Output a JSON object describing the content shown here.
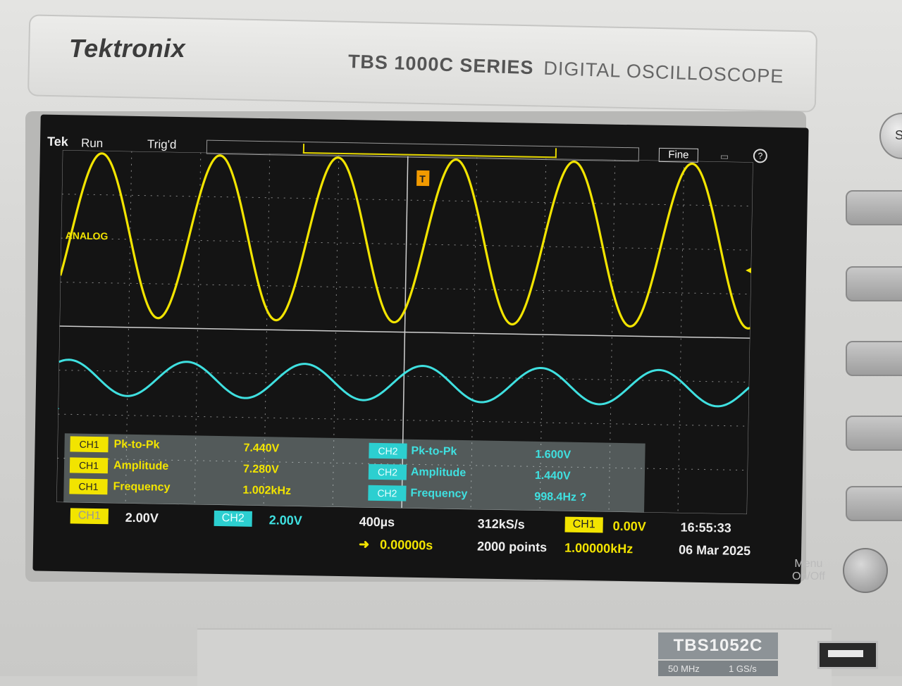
{
  "brand": "Tektronix",
  "model_series": "TBS 1000C SERIES",
  "device_type": "DIGITAL OSCILLOSCOPE",
  "status": {
    "logo": "Tek",
    "run_state": "Run",
    "trigger_state": "Trig'd",
    "fine": "Fine",
    "help": "?"
  },
  "ch1_label": "ANALOG",
  "ch1_marker": "1▶",
  "ch2_marker": "2▷",
  "trigger_marker": "T",
  "measurements": [
    {
      "ch": "CH1",
      "name": "Pk-to-Pk",
      "value": "7.440V"
    },
    {
      "ch": "CH1",
      "name": "Amplitude",
      "value": "7.280V"
    },
    {
      "ch": "CH1",
      "name": "Frequency",
      "value": "1.002kHz"
    },
    {
      "ch": "CH2",
      "name": "Pk-to-Pk",
      "value": "1.600V"
    },
    {
      "ch": "CH2",
      "name": "Amplitude",
      "value": "1.440V"
    },
    {
      "ch": "CH2",
      "name": "Frequency",
      "value": "998.4Hz ?"
    }
  ],
  "bottom": {
    "ch1": "CH1",
    "ch1_scale": "2.00V",
    "ch2": "CH2",
    "ch2_scale": "2.00V",
    "timebase": "400µs",
    "delay": "0.00000s",
    "sample_rate": "312kS/s",
    "record": "2000 points",
    "trig_ch": "CH1",
    "trig_level": "0.00V",
    "trig_freq": "1.00000kHz",
    "time": "16:55:33",
    "date": "06 Mar 2025"
  },
  "menu_label_1": "Menu",
  "menu_label_2": "On/Off",
  "model": "TBS1052C",
  "bandwidth": "50 MHz",
  "sample_max": "1 GS/s",
  "top_button": "Sa",
  "colors": {
    "ch1": "#f2e400",
    "ch2": "#3fe0e0",
    "screen": "#141414"
  },
  "waveforms": {
    "ch1": {
      "cycles": 5.85,
      "phase_deg": -120
    },
    "ch2": {
      "cycles": 5.85,
      "phase_deg": -30
    }
  }
}
